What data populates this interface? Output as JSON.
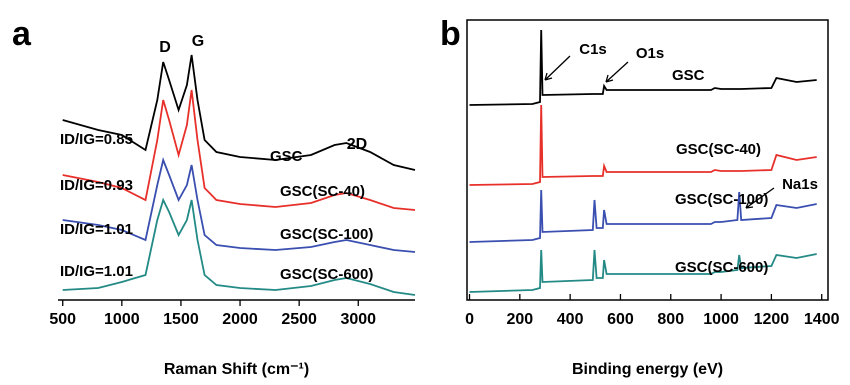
{
  "chart_data": [
    {
      "type": "line",
      "panel_label": "a",
      "xlabel": "Raman Shift (cm⁻¹)",
      "xlim": [
        460,
        3480
      ],
      "ylim": [
        0,
        270
      ],
      "xticks": [
        500,
        1000,
        1500,
        2000,
        2500,
        3000
      ],
      "x": [
        500,
        800,
        1000,
        1200,
        1300,
        1350,
        1400,
        1480,
        1550,
        1590,
        1640,
        1700,
        1800,
        2000,
        2300,
        2600,
        2800,
        2900,
        3100,
        3300,
        3480
      ],
      "series": [
        {
          "name": "GSC",
          "color": "#000000",
          "values": [
            180,
            170,
            165,
            150,
            200,
            238,
            220,
            190,
            215,
            245,
            200,
            160,
            148,
            143,
            140,
            145,
            155,
            157,
            148,
            135,
            130
          ]
        },
        {
          "name": "GSC(SC-40)",
          "color": "#e8302a",
          "values": [
            125,
            118,
            112,
            100,
            160,
            200,
            180,
            145,
            175,
            210,
            160,
            112,
            100,
            96,
            93,
            97,
            105,
            107,
            100,
            92,
            90
          ]
        },
        {
          "name": "GSC(SC-100)",
          "color": "#3a4fb0",
          "values": [
            80,
            75,
            70,
            60,
            115,
            140,
            125,
            100,
            115,
            135,
            100,
            65,
            55,
            52,
            50,
            53,
            58,
            60,
            55,
            50,
            48
          ]
        },
        {
          "name": "GSC(SC-600)",
          "color": "#238a86",
          "values": [
            10,
            12,
            18,
            25,
            80,
            100,
            88,
            65,
            80,
            100,
            60,
            25,
            15,
            12,
            10,
            14,
            20,
            22,
            16,
            8,
            5
          ]
        }
      ],
      "annotations": [
        "D",
        "G",
        "2D",
        "ID/IG=0.85",
        "ID/IG=0.93",
        "ID/IG=1.01",
        "ID/IG=1.01"
      ]
    },
    {
      "type": "line",
      "panel_label": "b",
      "xlabel": "Binding energy (eV)",
      "xlim": [
        -10,
        1425
      ],
      "ylim": [
        0,
        280
      ],
      "xticks": [
        0,
        200,
        400,
        600,
        800,
        1000,
        1200,
        1400
      ],
      "x": [
        0,
        250,
        280,
        285,
        290,
        490,
        497,
        505,
        530,
        535,
        545,
        960,
        975,
        1000,
        1065,
        1072,
        1080,
        1200,
        1220,
        1300,
        1380
      ],
      "series": [
        {
          "name": "GSC",
          "color": "#000000",
          "values": [
            195,
            196,
            198,
            270,
            205,
            206,
            206,
            206,
            206,
            214,
            210,
            210,
            212,
            211,
            211,
            211,
            211,
            212,
            222,
            218,
            220
          ]
        },
        {
          "name": "GSC(SC-40)",
          "color": "#e8302a",
          "values": [
            115,
            116,
            118,
            195,
            123,
            124,
            124,
            124,
            124,
            134,
            128,
            128,
            130,
            129,
            129,
            129,
            129,
            130,
            145,
            140,
            143
          ]
        },
        {
          "name": "GSC(SC-100)",
          "color": "#3a4fb0",
          "values": [
            58,
            60,
            62,
            110,
            68,
            70,
            100,
            72,
            72,
            90,
            76,
            76,
            78,
            78,
            80,
            108,
            80,
            82,
            95,
            92,
            96
          ]
        },
        {
          "name": "GSC(SC-600)",
          "color": "#238a86",
          "values": [
            8,
            10,
            12,
            50,
            18,
            20,
            50,
            22,
            22,
            40,
            26,
            26,
            28,
            28,
            30,
            45,
            32,
            34,
            45,
            42,
            46
          ]
        }
      ],
      "annotations": [
        "C1s",
        "O1s",
        "Na1s"
      ]
    }
  ]
}
